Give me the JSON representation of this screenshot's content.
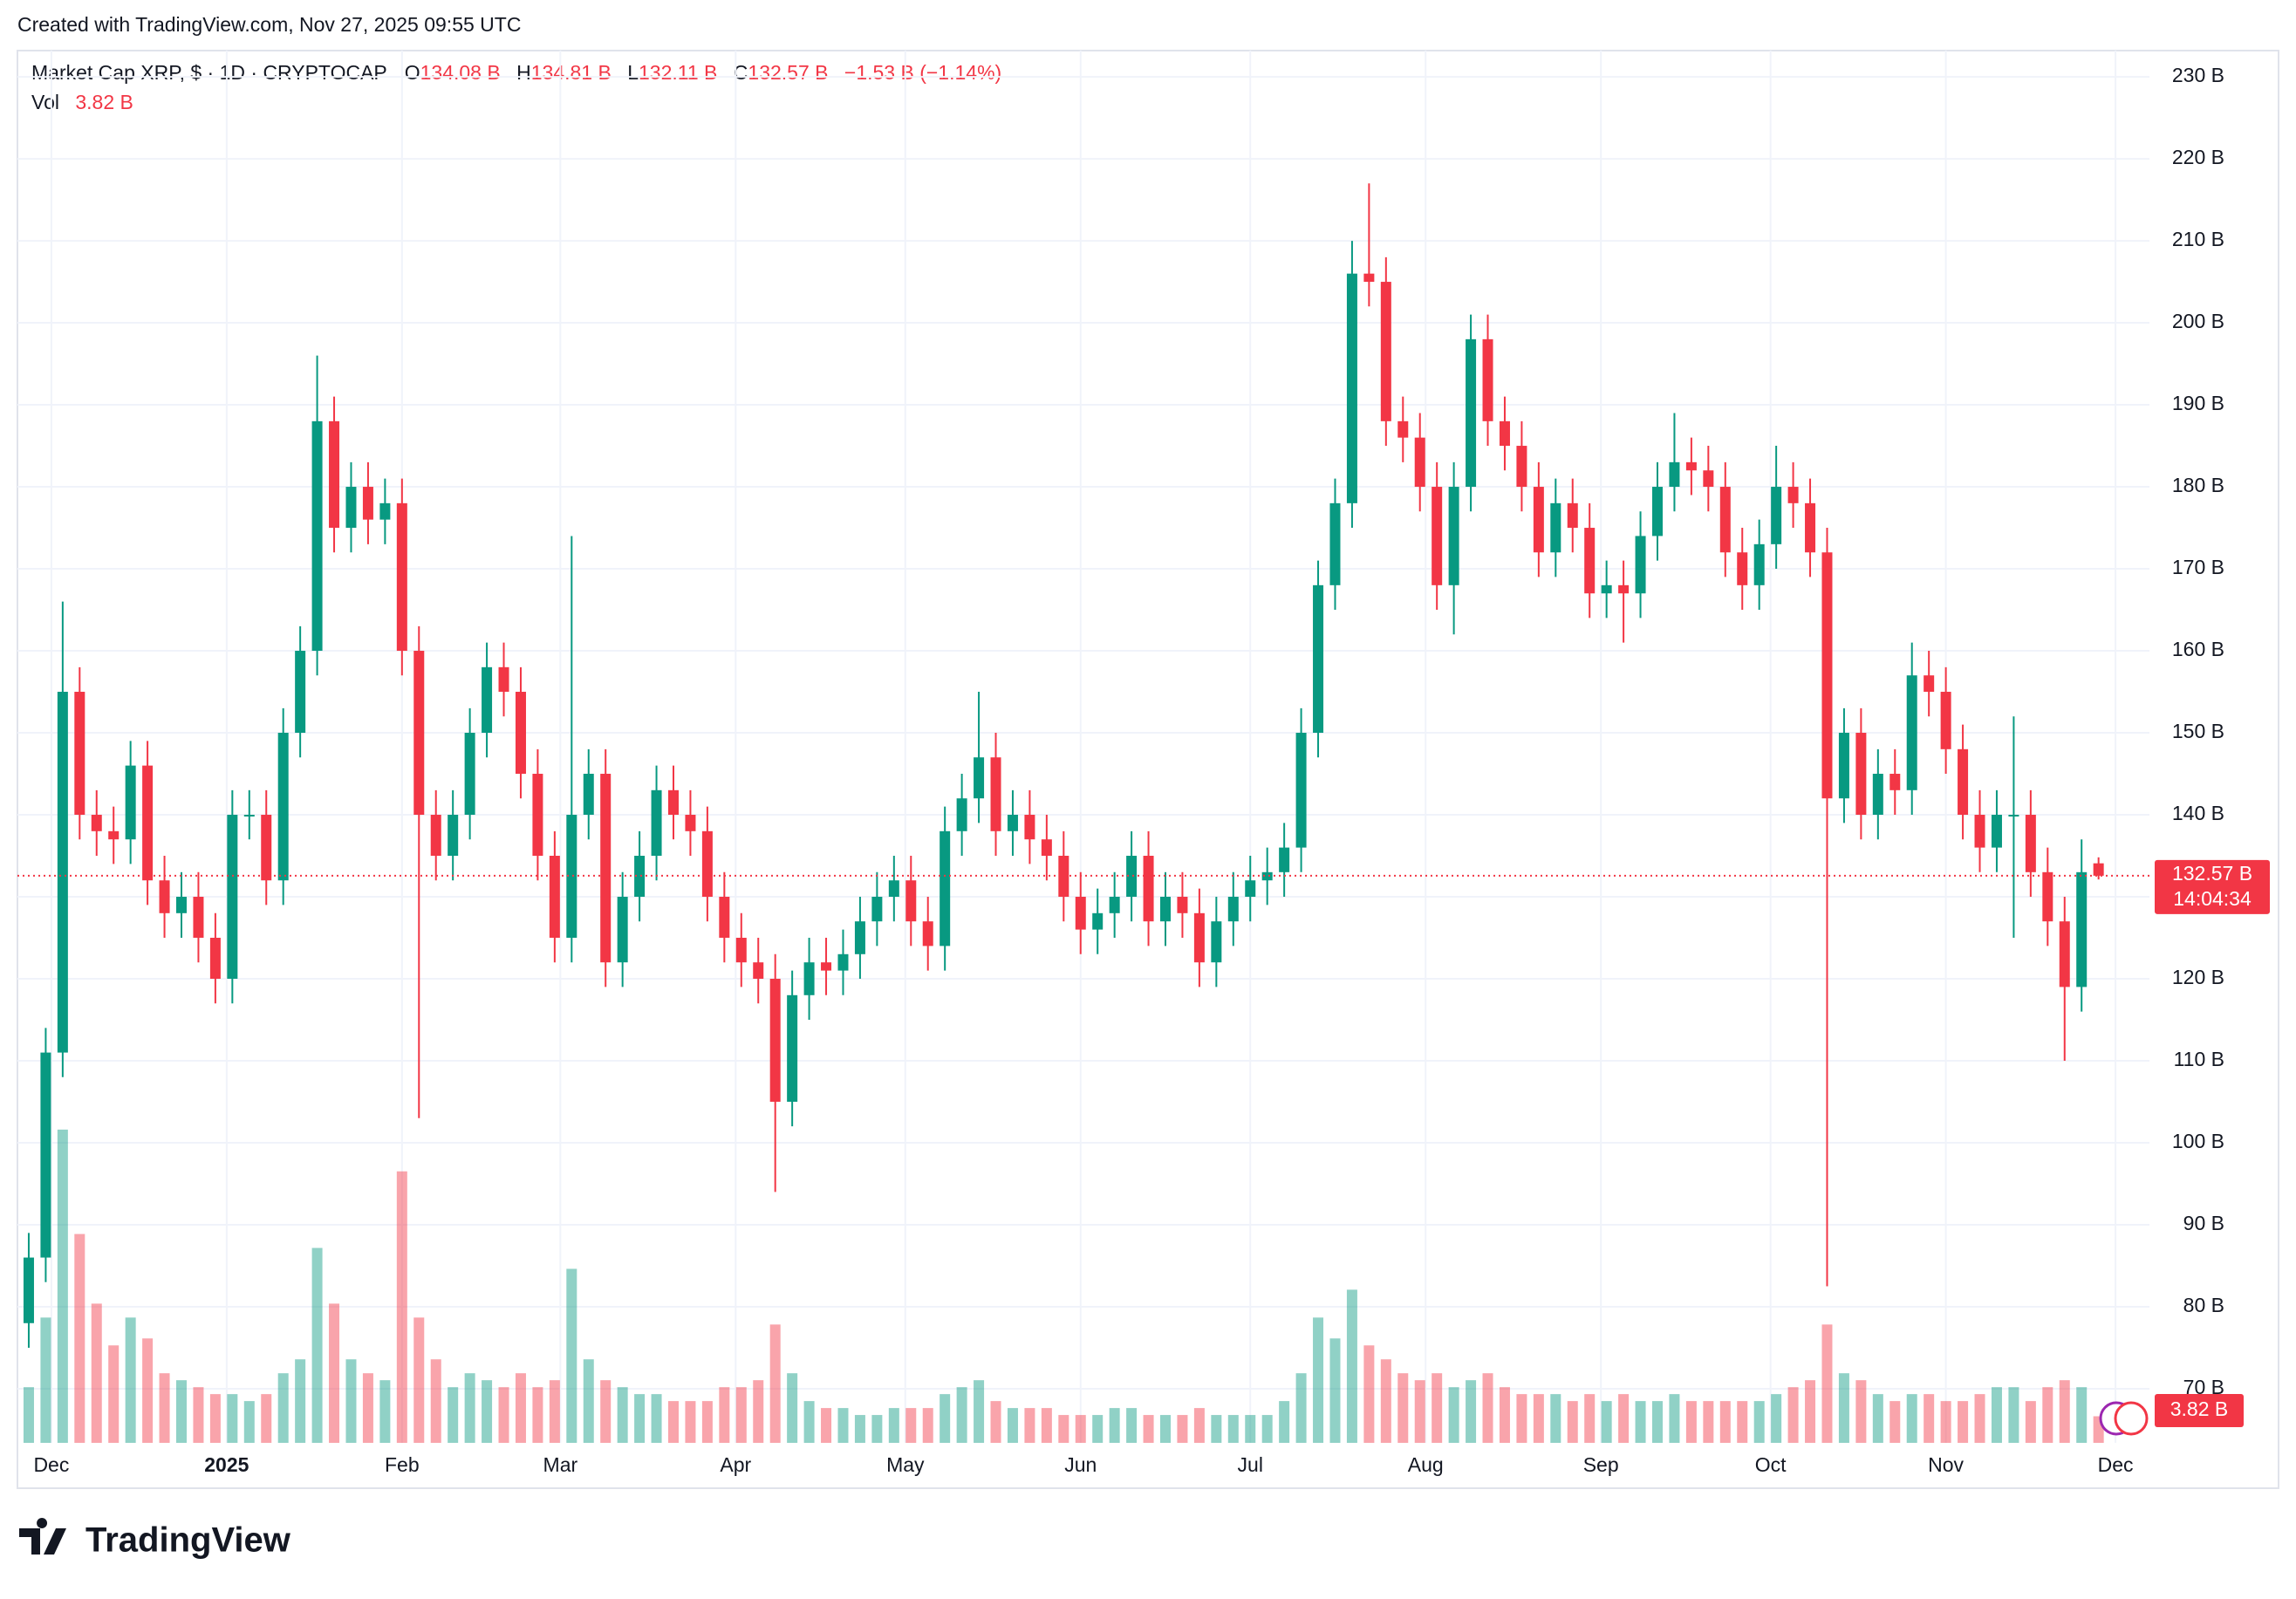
{
  "chart_data": {
    "type": "candlestick",
    "created": "Created with TradingView.com, Nov 27, 2025 09:55 UTC",
    "title": "Market Cap XRP, $ · 1D · CRYPTOCAP",
    "legend": {
      "o_label": "O",
      "o": "134.08 B",
      "h_label": "H",
      "h": "134.81 B",
      "l_label": "L",
      "l": "132.11 B",
      "c_label": "C",
      "c": "132.57 B",
      "change": "−1.53 B (−1.14%)",
      "vol_label": "Vol",
      "vol": "3.82 B"
    },
    "brand": "TradingView",
    "colors": {
      "up": "#089981",
      "down": "#f23645"
    },
    "grid": true,
    "xlim": [
      -6,
      371
    ],
    "xticks": [
      {
        "value": 0,
        "label": "Dec"
      },
      {
        "value": 31,
        "label": "2025"
      },
      {
        "value": 62,
        "label": "Feb"
      },
      {
        "value": 90,
        "label": "Mar"
      },
      {
        "value": 121,
        "label": "Apr"
      },
      {
        "value": 151,
        "label": "May"
      },
      {
        "value": 182,
        "label": "Jun"
      },
      {
        "value": 212,
        "label": "Jul"
      },
      {
        "value": 243,
        "label": "Aug"
      },
      {
        "value": 274,
        "label": "Sep"
      },
      {
        "value": 304,
        "label": "Oct"
      },
      {
        "value": 335,
        "label": "Nov"
      },
      {
        "value": 365,
        "label": "Dec"
      }
    ],
    "ylim": [
      63.4,
      233.2
    ],
    "yticks": [
      {
        "value": 70,
        "label": "70 B"
      },
      {
        "value": 80,
        "label": "80 B"
      },
      {
        "value": 90,
        "label": "90 B"
      },
      {
        "value": 100,
        "label": "100 B"
      },
      {
        "value": 110,
        "label": "110 B"
      },
      {
        "value": 120,
        "label": "120 B"
      },
      {
        "value": 130,
        "label": "130 B"
      },
      {
        "value": 140,
        "label": "140 B"
      },
      {
        "value": 150,
        "label": "150 B"
      },
      {
        "value": 160,
        "label": "160 B"
      },
      {
        "value": 170,
        "label": "170 B"
      },
      {
        "value": 180,
        "label": "180 B"
      },
      {
        "value": 190,
        "label": "190 B"
      },
      {
        "value": 200,
        "label": "200 B"
      },
      {
        "value": 210,
        "label": "210 B"
      },
      {
        "value": 220,
        "label": "220 B"
      },
      {
        "value": 230,
        "label": "230 B"
      }
    ],
    "last_price": {
      "value": 132.57,
      "label": "132.57 B"
    },
    "countdown": "14:04:34",
    "volume_ylim": [
      0,
      200
    ],
    "volume_label": "3.82 B",
    "x": [
      -4,
      -1,
      2,
      5,
      8,
      11,
      14,
      17,
      20,
      23,
      26,
      29,
      32,
      35,
      38,
      41,
      44,
      47,
      50,
      53,
      56,
      59,
      62,
      65,
      68,
      71,
      74,
      77,
      80,
      83,
      86,
      89,
      92,
      95,
      98,
      101,
      104,
      107,
      110,
      113,
      116,
      119,
      122,
      125,
      128,
      131,
      134,
      137,
      140,
      143,
      146,
      149,
      152,
      155,
      158,
      161,
      164,
      167,
      170,
      173,
      176,
      179,
      182,
      185,
      188,
      191,
      194,
      197,
      200,
      203,
      206,
      209,
      212,
      215,
      218,
      221,
      224,
      227,
      230,
      233,
      236,
      239,
      242,
      245,
      248,
      251,
      254,
      257,
      260,
      263,
      266,
      269,
      272,
      275,
      278,
      281,
      284,
      287,
      290,
      293,
      296,
      299,
      302,
      305,
      308,
      311,
      314,
      317,
      320,
      323,
      326,
      329,
      332,
      335,
      338,
      341,
      344,
      347,
      350,
      353,
      356,
      359,
      362
    ],
    "open": [
      78,
      86,
      111,
      155,
      140,
      138,
      137,
      146,
      132,
      128,
      130,
      125,
      120,
      140,
      140,
      132,
      150,
      160,
      188,
      175,
      180,
      176,
      178,
      160,
      140,
      135,
      140,
      150,
      158,
      155,
      145,
      135,
      125,
      140,
      145,
      122,
      130,
      135,
      143,
      140,
      138,
      130,
      125,
      122,
      120,
      105,
      118,
      122,
      121,
      123,
      127,
      130,
      132,
      127,
      124,
      138,
      142,
      147,
      138,
      140,
      137,
      135,
      130,
      126,
      128,
      130,
      135,
      127,
      130,
      128,
      122,
      127,
      130,
      132,
      133,
      136,
      150,
      168,
      178,
      206,
      205,
      188,
      186,
      180,
      168,
      180,
      198,
      188,
      185,
      180,
      172,
      178,
      175,
      167,
      168,
      167,
      174,
      180,
      183,
      182,
      180,
      172,
      168,
      173,
      180,
      178,
      172,
      142,
      150,
      140,
      145,
      143,
      157,
      155,
      148,
      140,
      136,
      140,
      140,
      133,
      127,
      119,
      134.08
    ],
    "high": [
      89,
      114,
      166,
      158,
      143,
      141,
      149,
      149,
      135,
      133,
      133,
      128,
      143,
      143,
      143,
      153,
      163,
      196,
      191,
      183,
      183,
      181,
      181,
      163,
      143,
      143,
      153,
      161,
      161,
      158,
      148,
      138,
      174,
      148,
      148,
      133,
      138,
      146,
      146,
      143,
      141,
      133,
      128,
      125,
      123,
      121,
      125,
      125,
      126,
      130,
      133,
      135,
      135,
      130,
      141,
      145,
      155,
      150,
      143,
      143,
      140,
      138,
      133,
      131,
      133,
      138,
      138,
      133,
      133,
      131,
      130,
      133,
      135,
      136,
      139,
      153,
      171,
      181,
      210,
      217,
      208,
      191,
      189,
      183,
      183,
      201,
      201,
      191,
      188,
      183,
      181,
      181,
      178,
      171,
      171,
      177,
      183,
      189,
      186,
      185,
      183,
      175,
      176,
      185,
      183,
      181,
      175,
      153,
      153,
      148,
      148,
      161,
      160,
      158,
      151,
      143,
      143,
      152,
      143,
      136,
      130,
      137,
      134.81
    ],
    "low": [
      75,
      83,
      108,
      137,
      135,
      134,
      134,
      129,
      125,
      125,
      122,
      117,
      117,
      137,
      129,
      129,
      147,
      157,
      172,
      172,
      173,
      173,
      157,
      103,
      132,
      132,
      137,
      147,
      152,
      142,
      132,
      122,
      122,
      137,
      119,
      119,
      127,
      132,
      137,
      135,
      127,
      122,
      119,
      117,
      94,
      102,
      115,
      118,
      118,
      120,
      124,
      127,
      124,
      121,
      121,
      135,
      139,
      135,
      135,
      134,
      132,
      127,
      123,
      123,
      125,
      127,
      124,
      124,
      125,
      119,
      119,
      124,
      127,
      129,
      130,
      133,
      147,
      165,
      175,
      202,
      185,
      183,
      177,
      165,
      162,
      177,
      185,
      182,
      177,
      169,
      169,
      172,
      164,
      164,
      161,
      164,
      171,
      177,
      179,
      177,
      169,
      165,
      165,
      170,
      175,
      169,
      82.5,
      139,
      137,
      137,
      140,
      140,
      152,
      145,
      137,
      133,
      133,
      125,
      130,
      124,
      110,
      116,
      132.11
    ],
    "close": [
      86,
      111,
      155,
      140,
      138,
      137,
      146,
      132,
      128,
      130,
      125,
      120,
      140,
      140,
      132,
      150,
      160,
      188,
      175,
      180,
      176,
      178,
      160,
      140,
      135,
      140,
      150,
      158,
      155,
      145,
      135,
      125,
      140,
      145,
      122,
      130,
      135,
      143,
      140,
      138,
      130,
      125,
      122,
      120,
      105,
      118,
      122,
      121,
      123,
      127,
      130,
      132,
      127,
      124,
      138,
      142,
      147,
      138,
      140,
      137,
      135,
      130,
      126,
      128,
      130,
      135,
      127,
      130,
      128,
      122,
      127,
      130,
      132,
      133,
      136,
      150,
      168,
      178,
      206,
      205,
      188,
      186,
      180,
      168,
      180,
      198,
      188,
      185,
      180,
      172,
      178,
      175,
      167,
      168,
      167,
      174,
      180,
      183,
      182,
      180,
      172,
      168,
      173,
      180,
      178,
      172,
      142,
      150,
      140,
      145,
      143,
      157,
      155,
      148,
      140,
      136,
      140,
      140,
      133,
      127,
      119,
      133,
      132.57
    ],
    "volume": [
      8,
      18,
      45,
      30,
      20,
      14,
      18,
      15,
      10,
      9,
      8,
      7,
      7,
      6,
      7,
      10,
      12,
      28,
      20,
      12,
      10,
      9,
      39,
      18,
      12,
      8,
      10,
      9,
      8,
      10,
      8,
      9,
      25,
      12,
      9,
      8,
      7,
      7,
      6,
      6,
      6,
      8,
      8,
      9,
      17,
      10,
      6,
      5,
      5,
      4,
      4,
      5,
      5,
      5,
      7,
      8,
      9,
      6,
      5,
      5,
      5,
      4,
      4,
      4,
      5,
      5,
      4,
      4,
      4,
      5,
      4,
      4,
      4,
      4,
      6,
      10,
      18,
      15,
      22,
      14,
      12,
      10,
      9,
      10,
      8,
      9,
      10,
      8,
      7,
      7,
      7,
      6,
      7,
      6,
      7,
      6,
      6,
      7,
      6,
      6,
      6,
      6,
      6,
      7,
      8,
      9,
      17,
      10,
      9,
      7,
      6,
      7,
      7,
      6,
      6,
      7,
      8,
      8,
      6,
      8,
      9,
      8,
      3.82
    ]
  }
}
